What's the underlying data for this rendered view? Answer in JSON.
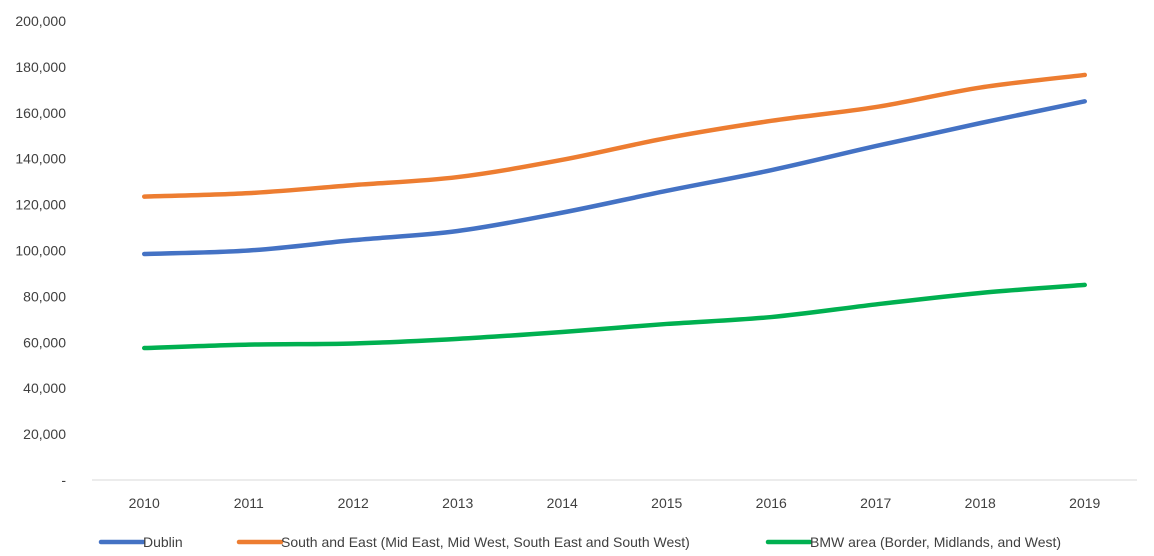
{
  "chart_data": {
    "type": "line",
    "title": "",
    "xlabel": "",
    "ylabel": "",
    "categories": [
      "2010",
      "2011",
      "2012",
      "2013",
      "2014",
      "2015",
      "2016",
      "2017",
      "2018",
      "2019"
    ],
    "ylim": [
      0,
      200000
    ],
    "yticks": [
      0,
      20000,
      40000,
      60000,
      80000,
      100000,
      120000,
      140000,
      160000,
      180000,
      200000
    ],
    "ytick_labels": [
      "-",
      "20,000",
      "40,000",
      "60,000",
      "80,000",
      "100,000",
      "120,000",
      "140,000",
      "160,000",
      "180,000",
      "200,000"
    ],
    "grid": false,
    "legend_position": "bottom",
    "series": [
      {
        "name": "Dublin",
        "color": "#4472C4",
        "values": [
          98500,
          100000,
          104500,
          108500,
          116500,
          126000,
          135000,
          145500,
          155500,
          165000
        ]
      },
      {
        "name": "South and East (Mid East, Mid West, South East and South West)",
        "color": "#ED7D31",
        "values": [
          123500,
          125000,
          128500,
          132000,
          139500,
          149000,
          156500,
          162500,
          171000,
          176500
        ]
      },
      {
        "name": "BMW area (Border, Midlands, and West)",
        "color": "#00B050",
        "values": [
          57500,
          59000,
          59500,
          61500,
          64500,
          68000,
          71000,
          76500,
          81500,
          85000
        ]
      }
    ]
  }
}
